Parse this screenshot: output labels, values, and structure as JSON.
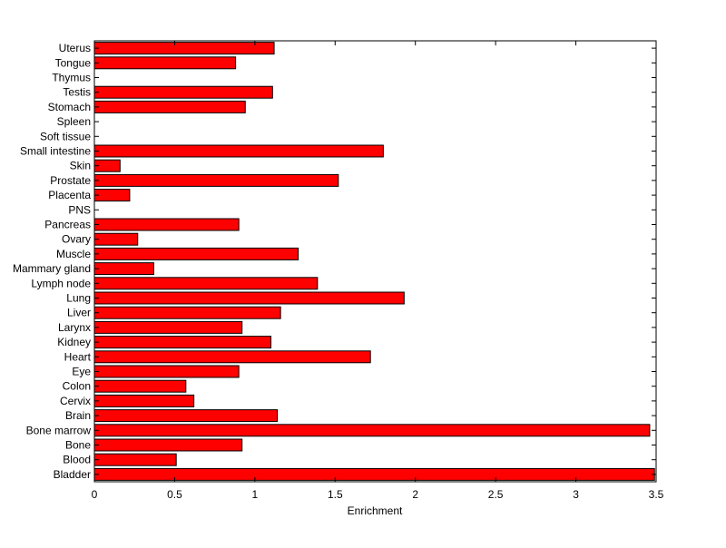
{
  "chart_data": {
    "type": "bar",
    "orientation": "horizontal",
    "xlabel": "Enrichment",
    "ylabel": "",
    "title": "",
    "xlim": [
      0,
      3.5
    ],
    "xticks": [
      0,
      0.5,
      1,
      1.5,
      2,
      2.5,
      3,
      3.5
    ],
    "xtick_labels": [
      "0",
      "0.5",
      "1",
      "1.5",
      "2",
      "2.5",
      "3",
      "3.5"
    ],
    "grid": false,
    "bar_color": "#ff0000",
    "edge_color": "#000000",
    "categories": [
      "Bladder",
      "Blood",
      "Bone",
      "Bone marrow",
      "Brain",
      "Cervix",
      "Colon",
      "Eye",
      "Heart",
      "Kidney",
      "Larynx",
      "Liver",
      "Lung",
      "Lymph node",
      "Mammary gland",
      "Muscle",
      "Ovary",
      "Pancreas",
      "PNS",
      "Placenta",
      "Prostate",
      "Skin",
      "Small intestine",
      "Soft tissue",
      "Spleen",
      "Stomach",
      "Testis",
      "Thymus",
      "Tongue",
      "Uterus"
    ],
    "values": [
      3.49,
      0.51,
      0.92,
      3.46,
      1.14,
      0.62,
      0.57,
      0.9,
      1.72,
      1.1,
      0.92,
      1.16,
      1.93,
      1.39,
      0.37,
      1.27,
      0.27,
      0.9,
      0,
      0.22,
      1.52,
      0.16,
      1.8,
      0,
      0,
      0.94,
      1.11,
      0,
      0.88,
      1.12
    ]
  }
}
